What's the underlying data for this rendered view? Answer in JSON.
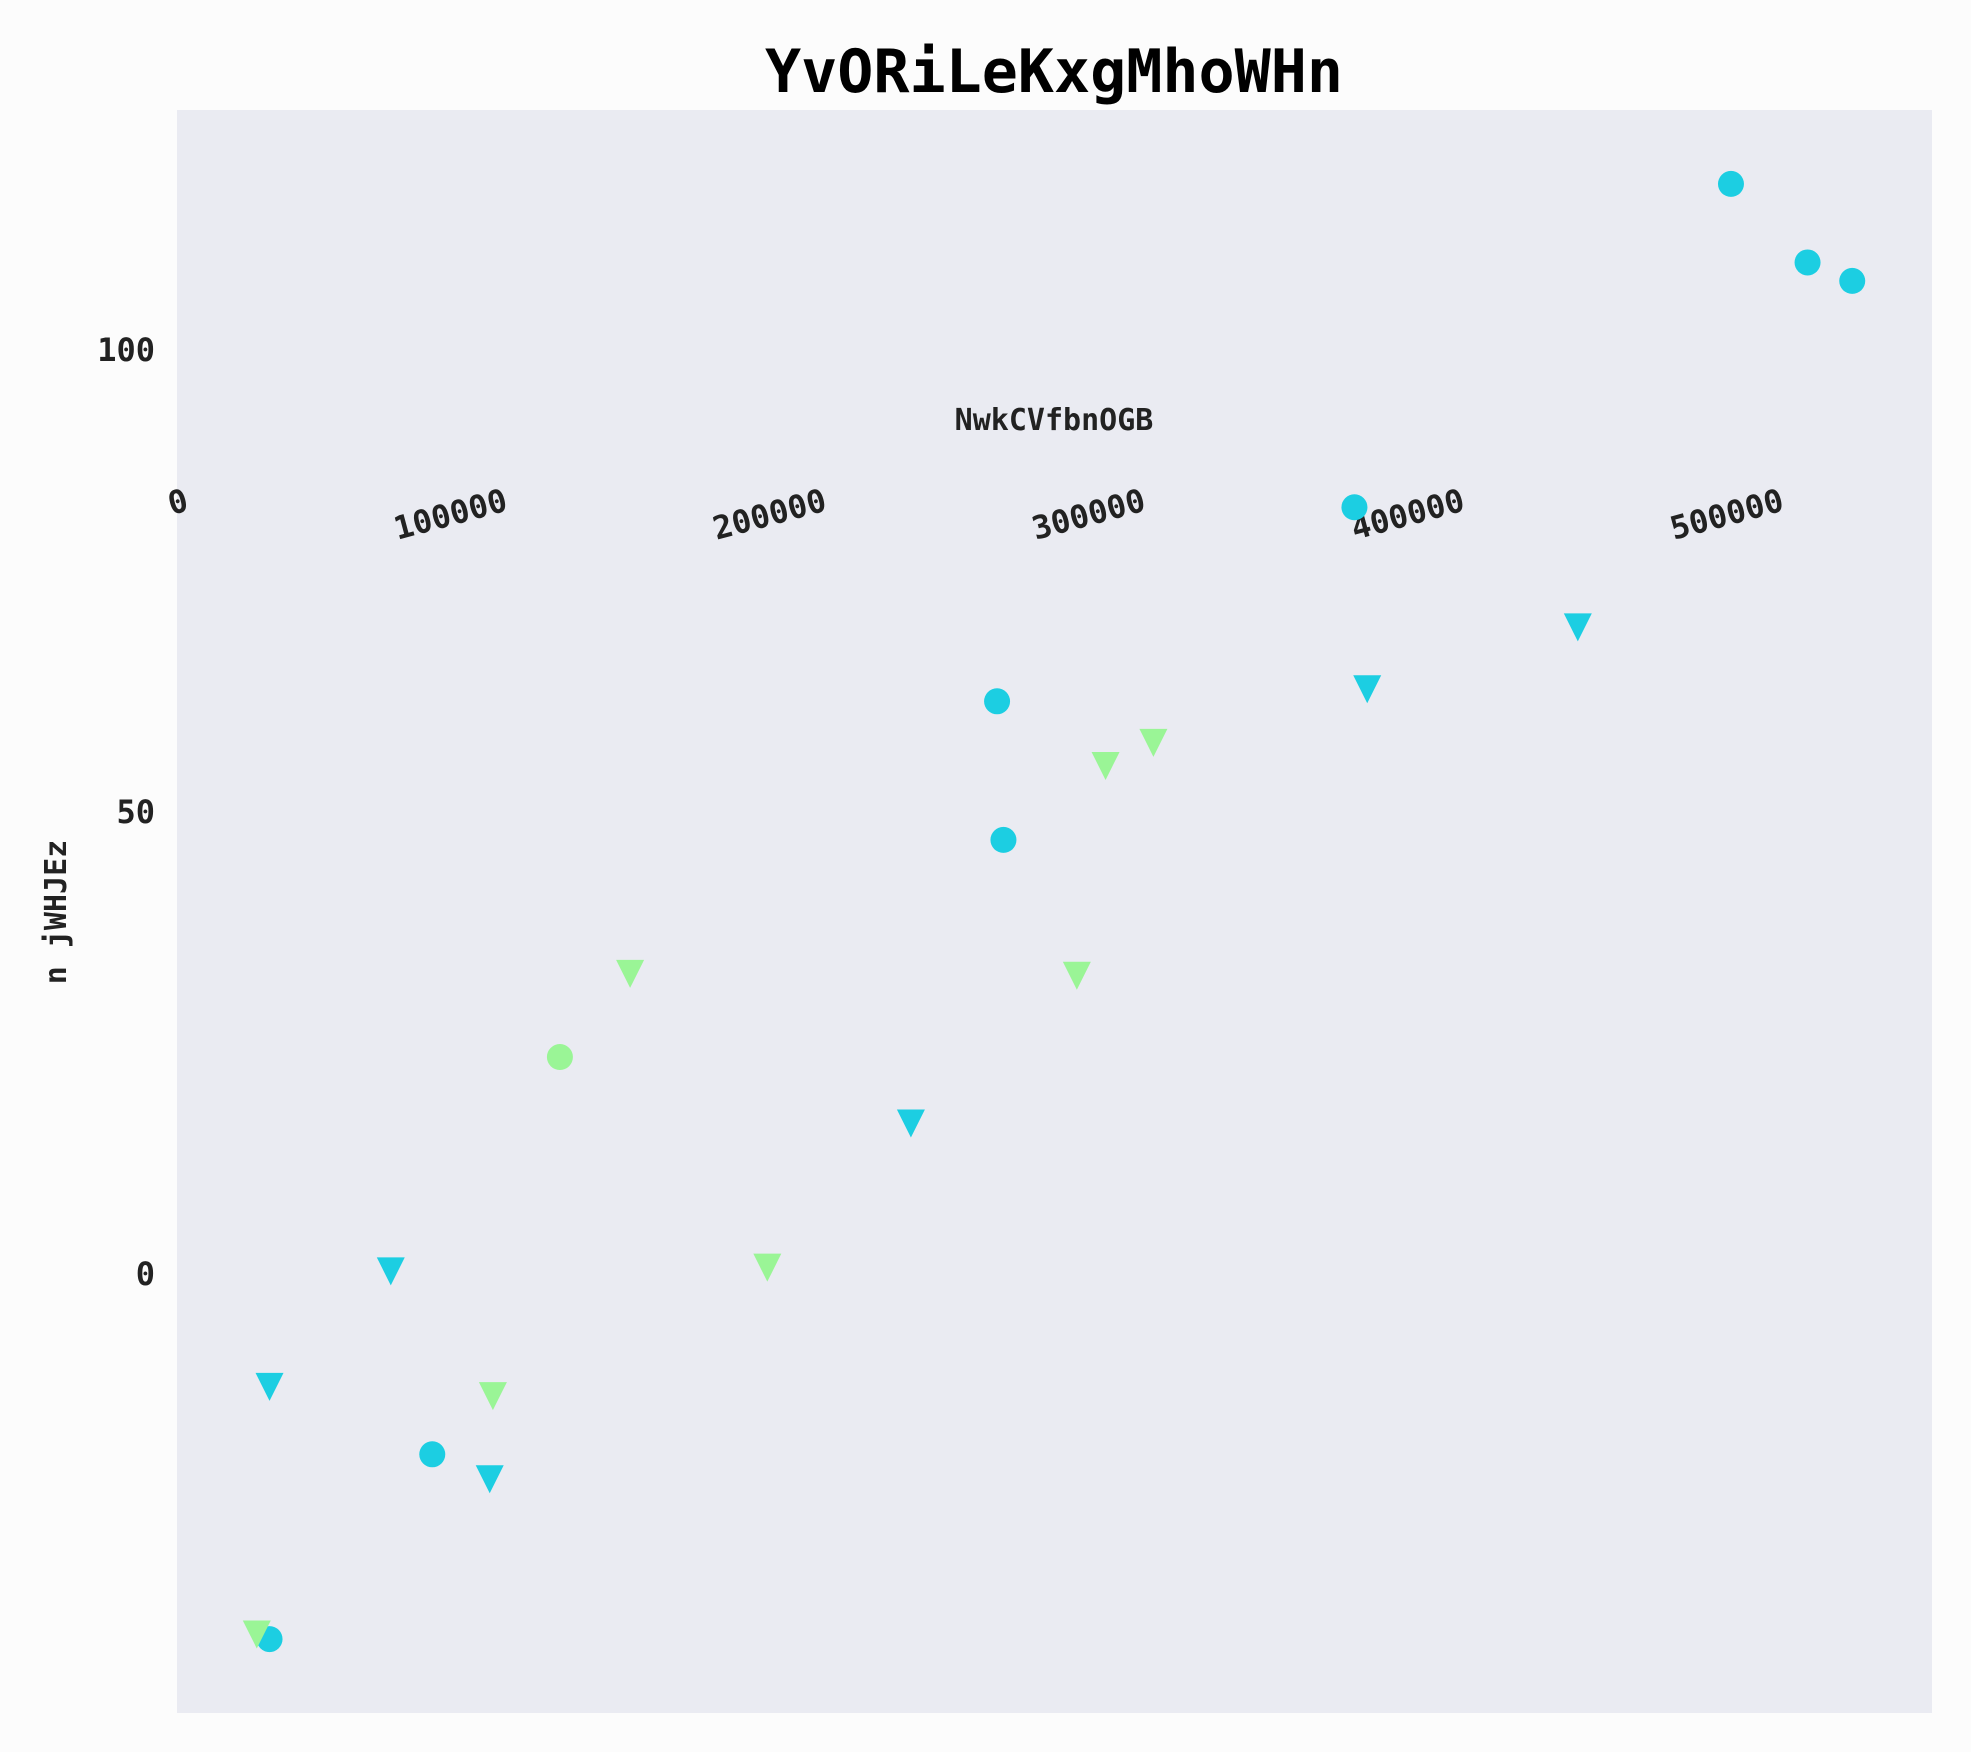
{
  "chart_data": {
    "type": "scatter",
    "title": "YvORiLeKxgMhoWHn",
    "xlabel": "NwkCVfbnOGB",
    "ylabel": "n jWHJEz",
    "xlim": [
      0,
      550000
    ],
    "ylim": [
      -47.5,
      126
    ],
    "x_ticks": [
      "0",
      "100000",
      "200000",
      "300000",
      "400000",
      "500000"
    ],
    "x_tick_values": [
      0,
      100000,
      200000,
      300000,
      400000,
      500000
    ],
    "y_ticks": [
      "0",
      "50",
      "100"
    ],
    "y_tick_values": [
      0,
      50,
      100
    ],
    "x_axis_position": "top",
    "grid": false,
    "background": "#eaebf2",
    "colors": {
      "cyan": "#1ccee2",
      "green": "#9af596"
    },
    "series": [
      {
        "marker": "circle",
        "color": "#1ccee2",
        "points": [
          [
            487000,
            118
          ],
          [
            511000,
            109.5
          ],
          [
            525000,
            107.5
          ],
          [
            369000,
            83
          ],
          [
            257000,
            62
          ],
          [
            259000,
            47
          ],
          [
            80000,
            -19.5
          ],
          [
            29000,
            -39.5
          ]
        ]
      },
      {
        "marker": "triangle-down",
        "color": "#1ccee2",
        "points": [
          [
            439000,
            70
          ],
          [
            373000,
            63.3
          ],
          [
            230000,
            16.3
          ],
          [
            67000,
            0.3
          ],
          [
            29000,
            -12.2
          ],
          [
            98000,
            -22.2
          ]
        ]
      },
      {
        "marker": "circle",
        "color": "#9af596",
        "points": [
          [
            120000,
            23.5
          ]
        ]
      },
      {
        "marker": "triangle-down",
        "color": "#9af596",
        "points": [
          [
            306000,
            57.5
          ],
          [
            291000,
            55
          ],
          [
            142000,
            32.5
          ],
          [
            282000,
            32.3
          ],
          [
            185000,
            0.7
          ],
          [
            99000,
            -13.2
          ],
          [
            25000,
            -39
          ]
        ]
      }
    ]
  }
}
